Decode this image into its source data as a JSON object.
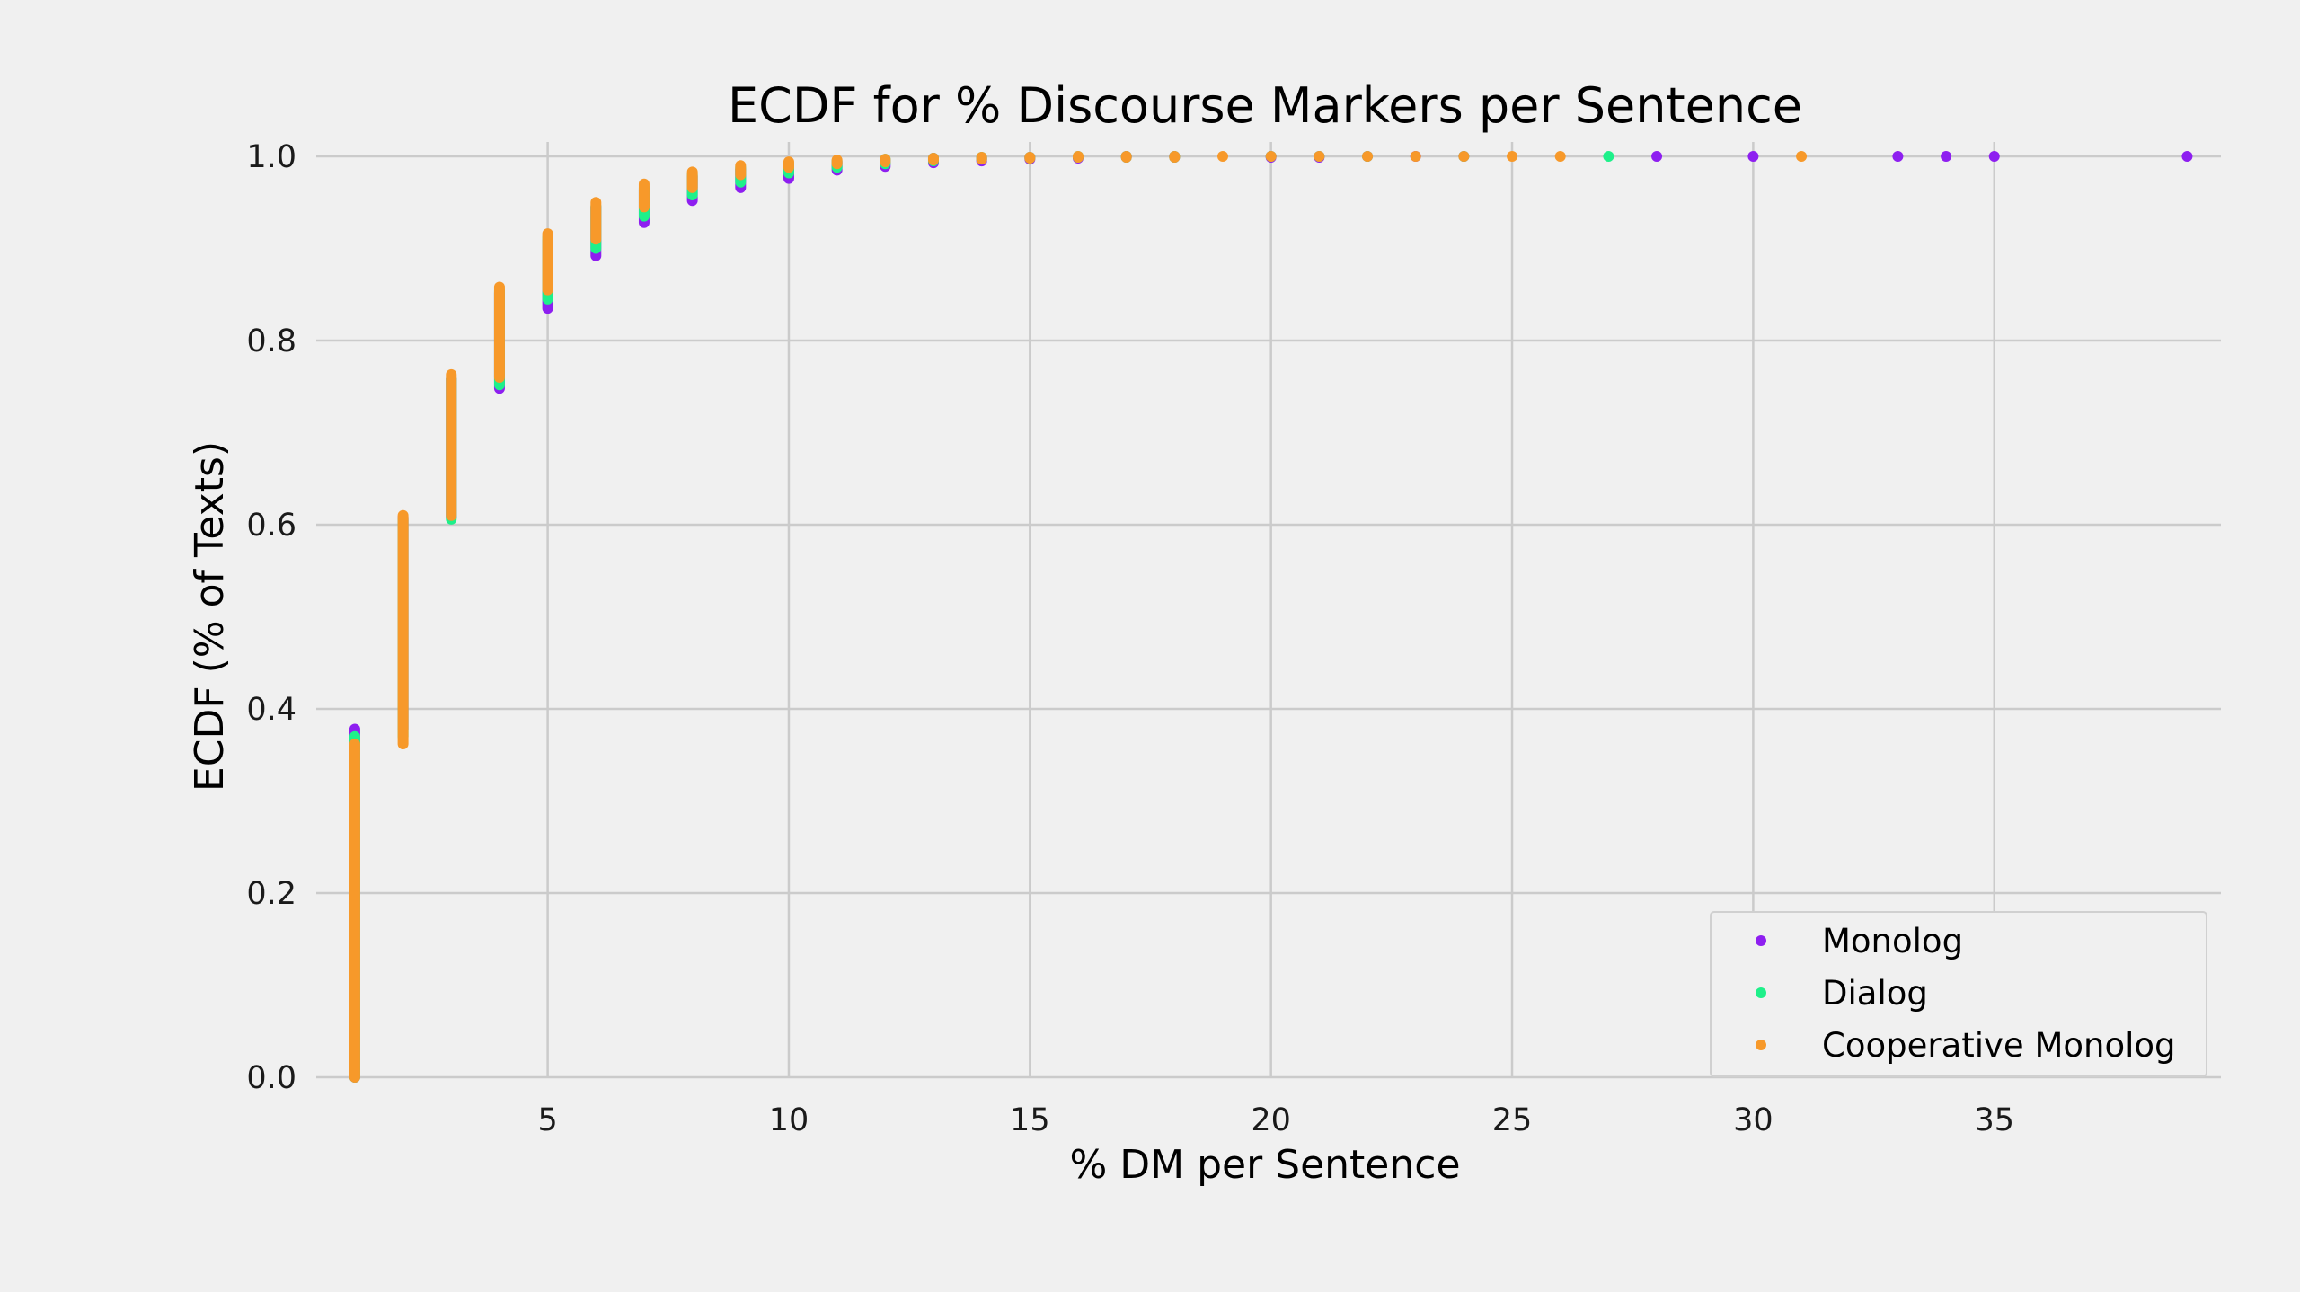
{
  "chart_data": {
    "type": "scatter",
    "title": "ECDF for % Discourse Markers per Sentence",
    "xlabel": "% DM per Sentence",
    "ylabel": "ECDF (% of Texts)",
    "xlim": [
      0.2,
      39.7
    ],
    "ylim": [
      0,
      1.0
    ],
    "xticks": [
      5,
      10,
      15,
      20,
      25,
      30,
      35
    ],
    "yticks": [
      0.0,
      0.2,
      0.4,
      0.6,
      0.8,
      1.0
    ],
    "xtick_labels": [
      "5",
      "10",
      "15",
      "20",
      "25",
      "30",
      "35"
    ],
    "ytick_labels": [
      "0.0",
      "0.2",
      "0.4",
      "0.6",
      "0.8",
      "1.0"
    ],
    "grid": true,
    "legend_position": "bottom-right",
    "series": [
      {
        "name": "Monolog",
        "color": "#8e1ff0",
        "steps": [
          {
            "x": 1,
            "y_low": 0.0,
            "y_high": 0.378
          },
          {
            "x": 2,
            "y_low": 0.378,
            "y_high": 0.608
          },
          {
            "x": 3,
            "y_low": 0.608,
            "y_high": 0.758
          },
          {
            "x": 4,
            "y_low": 0.748,
            "y_high": 0.852
          },
          {
            "x": 5,
            "y_low": 0.835,
            "y_high": 0.908
          },
          {
            "x": 6,
            "y_low": 0.892,
            "y_high": 0.945
          },
          {
            "x": 7,
            "y_low": 0.928,
            "y_high": 0.964
          },
          {
            "x": 8,
            "y_low": 0.952,
            "y_high": 0.978
          },
          {
            "x": 9,
            "y_low": 0.966,
            "y_high": 0.986
          },
          {
            "x": 10,
            "y_low": 0.976,
            "y_high": 0.991
          },
          {
            "x": 11,
            "y_low": 0.985,
            "y_high": 0.994
          },
          {
            "x": 12,
            "y_low": 0.989,
            "y_high": 0.996
          },
          {
            "x": 13,
            "y_low": 0.993,
            "y_high": 0.998
          },
          {
            "x": 14,
            "y_low": 0.995,
            "y_high": 0.998
          },
          {
            "x": 15,
            "y_low": 0.997,
            "y_high": 0.999
          },
          {
            "x": 16,
            "y_low": 0.998,
            "y_high": 0.999
          },
          {
            "x": 17,
            "y_low": 0.999,
            "y_high": 1.0
          },
          {
            "x": 18,
            "y_low": 0.999,
            "y_high": 1.0
          },
          {
            "x": 20,
            "y_low": 0.999,
            "y_high": 1.0
          },
          {
            "x": 21,
            "y_low": 0.999,
            "y_high": 1.0
          },
          {
            "x": 22,
            "y_low": 1.0,
            "y_high": 1.0
          },
          {
            "x": 23,
            "y_low": 1.0,
            "y_high": 1.0
          },
          {
            "x": 24,
            "y_low": 1.0,
            "y_high": 1.0
          },
          {
            "x": 28,
            "y_low": 1.0,
            "y_high": 1.0
          },
          {
            "x": 30,
            "y_low": 1.0,
            "y_high": 1.0
          },
          {
            "x": 33,
            "y_low": 1.0,
            "y_high": 1.0
          },
          {
            "x": 34,
            "y_low": 1.0,
            "y_high": 1.0
          },
          {
            "x": 35,
            "y_low": 1.0,
            "y_high": 1.0
          },
          {
            "x": 39,
            "y_low": 1.0,
            "y_high": 1.0
          }
        ]
      },
      {
        "name": "Dialog",
        "color": "#1ef08a",
        "steps": [
          {
            "x": 1,
            "y_low": 0.0,
            "y_high": 0.37
          },
          {
            "x": 2,
            "y_low": 0.37,
            "y_high": 0.606
          },
          {
            "x": 3,
            "y_low": 0.606,
            "y_high": 0.758
          },
          {
            "x": 4,
            "y_low": 0.752,
            "y_high": 0.854
          },
          {
            "x": 5,
            "y_low": 0.845,
            "y_high": 0.912
          },
          {
            "x": 6,
            "y_low": 0.9,
            "y_high": 0.946
          },
          {
            "x": 7,
            "y_low": 0.935,
            "y_high": 0.966
          },
          {
            "x": 8,
            "y_low": 0.958,
            "y_high": 0.98
          },
          {
            "x": 9,
            "y_low": 0.972,
            "y_high": 0.988
          },
          {
            "x": 10,
            "y_low": 0.982,
            "y_high": 0.992
          },
          {
            "x": 11,
            "y_low": 0.988,
            "y_high": 0.995
          },
          {
            "x": 12,
            "y_low": 0.992,
            "y_high": 0.997
          },
          {
            "x": 13,
            "y_low": 0.995,
            "y_high": 0.998
          },
          {
            "x": 14,
            "y_low": 0.997,
            "y_high": 0.999
          },
          {
            "x": 15,
            "y_low": 0.998,
            "y_high": 0.999
          },
          {
            "x": 16,
            "y_low": 0.999,
            "y_high": 1.0
          },
          {
            "x": 17,
            "y_low": 0.999,
            "y_high": 1.0
          },
          {
            "x": 18,
            "y_low": 0.999,
            "y_high": 1.0
          },
          {
            "x": 20,
            "y_low": 1.0,
            "y_high": 1.0
          },
          {
            "x": 21,
            "y_low": 1.0,
            "y_high": 1.0
          },
          {
            "x": 22,
            "y_low": 1.0,
            "y_high": 1.0
          },
          {
            "x": 24,
            "y_low": 1.0,
            "y_high": 1.0
          },
          {
            "x": 27,
            "y_low": 1.0,
            "y_high": 1.0
          }
        ]
      },
      {
        "name": "Cooperative Monolog",
        "color": "#f7992a",
        "steps": [
          {
            "x": 1,
            "y_low": 0.0,
            "y_high": 0.362
          },
          {
            "x": 2,
            "y_low": 0.362,
            "y_high": 0.61
          },
          {
            "x": 3,
            "y_low": 0.61,
            "y_high": 0.763
          },
          {
            "x": 4,
            "y_low": 0.76,
            "y_high": 0.858
          },
          {
            "x": 5,
            "y_low": 0.855,
            "y_high": 0.916
          },
          {
            "x": 6,
            "y_low": 0.91,
            "y_high": 0.95
          },
          {
            "x": 7,
            "y_low": 0.945,
            "y_high": 0.97
          },
          {
            "x": 8,
            "y_low": 0.966,
            "y_high": 0.983
          },
          {
            "x": 9,
            "y_low": 0.98,
            "y_high": 0.99
          },
          {
            "x": 10,
            "y_low": 0.988,
            "y_high": 0.994
          },
          {
            "x": 11,
            "y_low": 0.992,
            "y_high": 0.996
          },
          {
            "x": 12,
            "y_low": 0.994,
            "y_high": 0.997
          },
          {
            "x": 13,
            "y_low": 0.996,
            "y_high": 0.998
          },
          {
            "x": 14,
            "y_low": 0.997,
            "y_high": 0.999
          },
          {
            "x": 15,
            "y_low": 0.998,
            "y_high": 0.999
          },
          {
            "x": 16,
            "y_low": 0.999,
            "y_high": 1.0
          },
          {
            "x": 17,
            "y_low": 0.999,
            "y_high": 1.0
          },
          {
            "x": 18,
            "y_low": 0.999,
            "y_high": 1.0
          },
          {
            "x": 19,
            "y_low": 1.0,
            "y_high": 1.0
          },
          {
            "x": 20,
            "y_low": 1.0,
            "y_high": 1.0
          },
          {
            "x": 21,
            "y_low": 1.0,
            "y_high": 1.0
          },
          {
            "x": 22,
            "y_low": 1.0,
            "y_high": 1.0
          },
          {
            "x": 23,
            "y_low": 1.0,
            "y_high": 1.0
          },
          {
            "x": 24,
            "y_low": 1.0,
            "y_high": 1.0
          },
          {
            "x": 25,
            "y_low": 1.0,
            "y_high": 1.0
          },
          {
            "x": 26,
            "y_low": 1.0,
            "y_high": 1.0
          },
          {
            "x": 31,
            "y_low": 1.0,
            "y_high": 1.0
          }
        ]
      }
    ]
  }
}
